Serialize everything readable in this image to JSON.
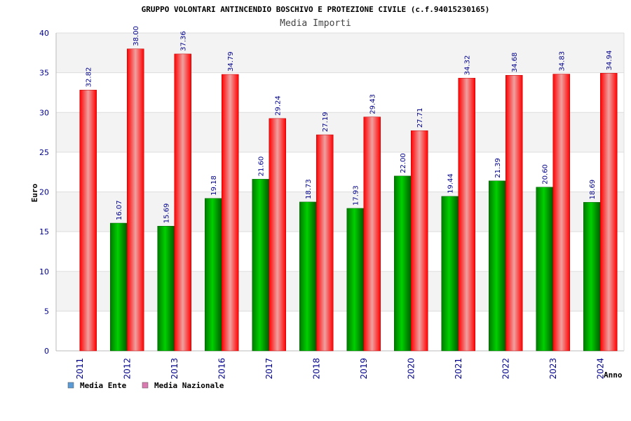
{
  "chart_data": {
    "type": "bar",
    "title": "GRUPPO VOLONTARI ANTINCENDIO BOSCHIVO E PROTEZIONE CIVILE (c.f.94015230165)",
    "subtitle": "Media Importi",
    "xlabel": "Anno",
    "ylabel": "Euro",
    "ylim": [
      0,
      40
    ],
    "yticks": [
      "0",
      "5",
      "10",
      "15",
      "20",
      "25",
      "30",
      "35",
      "40"
    ],
    "grid": true,
    "legend_position": "bottom-left",
    "categories": [
      "2011",
      "2012",
      "2013",
      "2016",
      "2017",
      "2018",
      "2019",
      "2020",
      "2021",
      "2022",
      "2023",
      "2024"
    ],
    "series": [
      {
        "name": "Media Ente",
        "color": "#00a000",
        "legend_color": "#5b9bd5",
        "values": [
          null,
          16.07,
          15.69,
          19.18,
          21.6,
          18.73,
          17.93,
          22.0,
          19.44,
          21.39,
          20.6,
          18.69
        ],
        "labels": [
          "",
          "16.07",
          "15.69",
          "19.18",
          "21.60",
          "18.73",
          "17.93",
          "22.00",
          "19.44",
          "21.39",
          "20.60",
          "18.69"
        ]
      },
      {
        "name": "Media Nazionale",
        "color": "#e8101a",
        "legend_color": "#d97ab0",
        "values": [
          32.82,
          38.0,
          37.36,
          34.79,
          29.24,
          27.19,
          29.43,
          27.71,
          34.32,
          34.68,
          34.83,
          34.94
        ],
        "labels": [
          "32.82",
          "38.00",
          "37.36",
          "34.79",
          "29.24",
          "27.19",
          "29.43",
          "27.71",
          "34.32",
          "34.68",
          "34.83",
          "34.94"
        ]
      }
    ]
  }
}
